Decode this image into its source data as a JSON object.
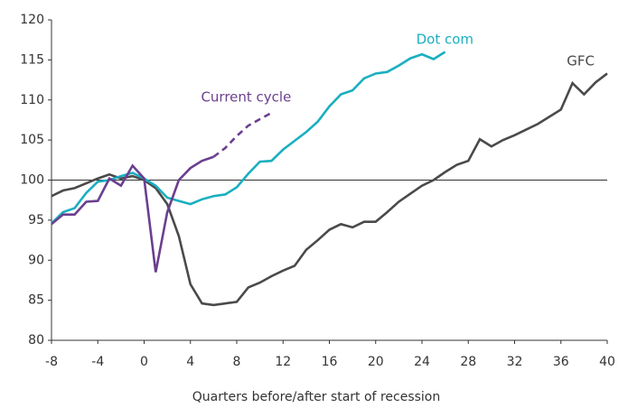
{
  "chart_data": {
    "type": "line",
    "xlabel": "Quarters before/after start of recession",
    "x": [
      -8,
      -7,
      -6,
      -5,
      -4,
      -3,
      -2,
      -1,
      0,
      1,
      2,
      3,
      4,
      5,
      6,
      7,
      8,
      9,
      10,
      11,
      12,
      13,
      14,
      15,
      16,
      17,
      18,
      19,
      20,
      21,
      22,
      23,
      24,
      25,
      26,
      27,
      28,
      29,
      30,
      31,
      32,
      33,
      34,
      35,
      36,
      37,
      38,
      39,
      40
    ],
    "series": [
      {
        "name": "GFC",
        "color": "#4a4a4a",
        "values": [
          98,
          98.7,
          99,
          99.6,
          100.2,
          100.7,
          100.2,
          100.5,
          100,
          99,
          97,
          93,
          87,
          84.6,
          84.4,
          84.6,
          84.8,
          86.6,
          87.2,
          88,
          88.7,
          89.3,
          91.3,
          92.5,
          93.8,
          94.5,
          94.1,
          94.8,
          94.8,
          96,
          97.3,
          98.3,
          99.3,
          100,
          101,
          101.9,
          102.4,
          105.1,
          104.2,
          105,
          105.6,
          106.3,
          107,
          107.9,
          108.8,
          112.1,
          110.7,
          112.2,
          113.3
        ]
      },
      {
        "name": "Dot com",
        "color": "#1aafc0",
        "values": [
          94.6,
          96,
          96.5,
          98.4,
          99.8,
          100,
          100.5,
          100.9,
          100.2,
          99.3,
          97.8,
          97.4,
          97,
          97.6,
          98,
          98.2,
          99.1,
          100.8,
          102.3,
          102.4,
          103.8,
          104.9,
          106,
          107.3,
          109.2,
          110.7,
          111.2,
          112.7,
          113.3,
          113.5,
          114.3,
          115.2,
          115.7,
          115.1,
          116,
          null,
          null,
          null,
          null,
          null,
          null,
          null,
          null,
          null,
          null,
          null,
          null,
          null,
          null
        ]
      },
      {
        "name": "Current cycle",
        "color": "#6b3f8f",
        "dashed_from": 6,
        "values": [
          94.5,
          95.7,
          95.7,
          97.3,
          97.4,
          100.2,
          99.3,
          101.8,
          100.2,
          88.5,
          96,
          100,
          101.5,
          102.4,
          102.9,
          104,
          105.5,
          106.8,
          107.6,
          108.4,
          null,
          null,
          null,
          null,
          null,
          null,
          null,
          null,
          null,
          null,
          null,
          null,
          null,
          null,
          null,
          null,
          null,
          null,
          null,
          null,
          null,
          null,
          null,
          null,
          null,
          null,
          null,
          null,
          null
        ]
      }
    ],
    "xlim": [
      -8,
      40
    ],
    "xticks": [
      -8,
      -4,
      0,
      4,
      8,
      12,
      16,
      20,
      24,
      28,
      32,
      36,
      40
    ],
    "ylim": [
      80,
      120
    ],
    "yticks": [
      80,
      85,
      90,
      95,
      100,
      105,
      110,
      115,
      120
    ],
    "reference_line": 100
  }
}
